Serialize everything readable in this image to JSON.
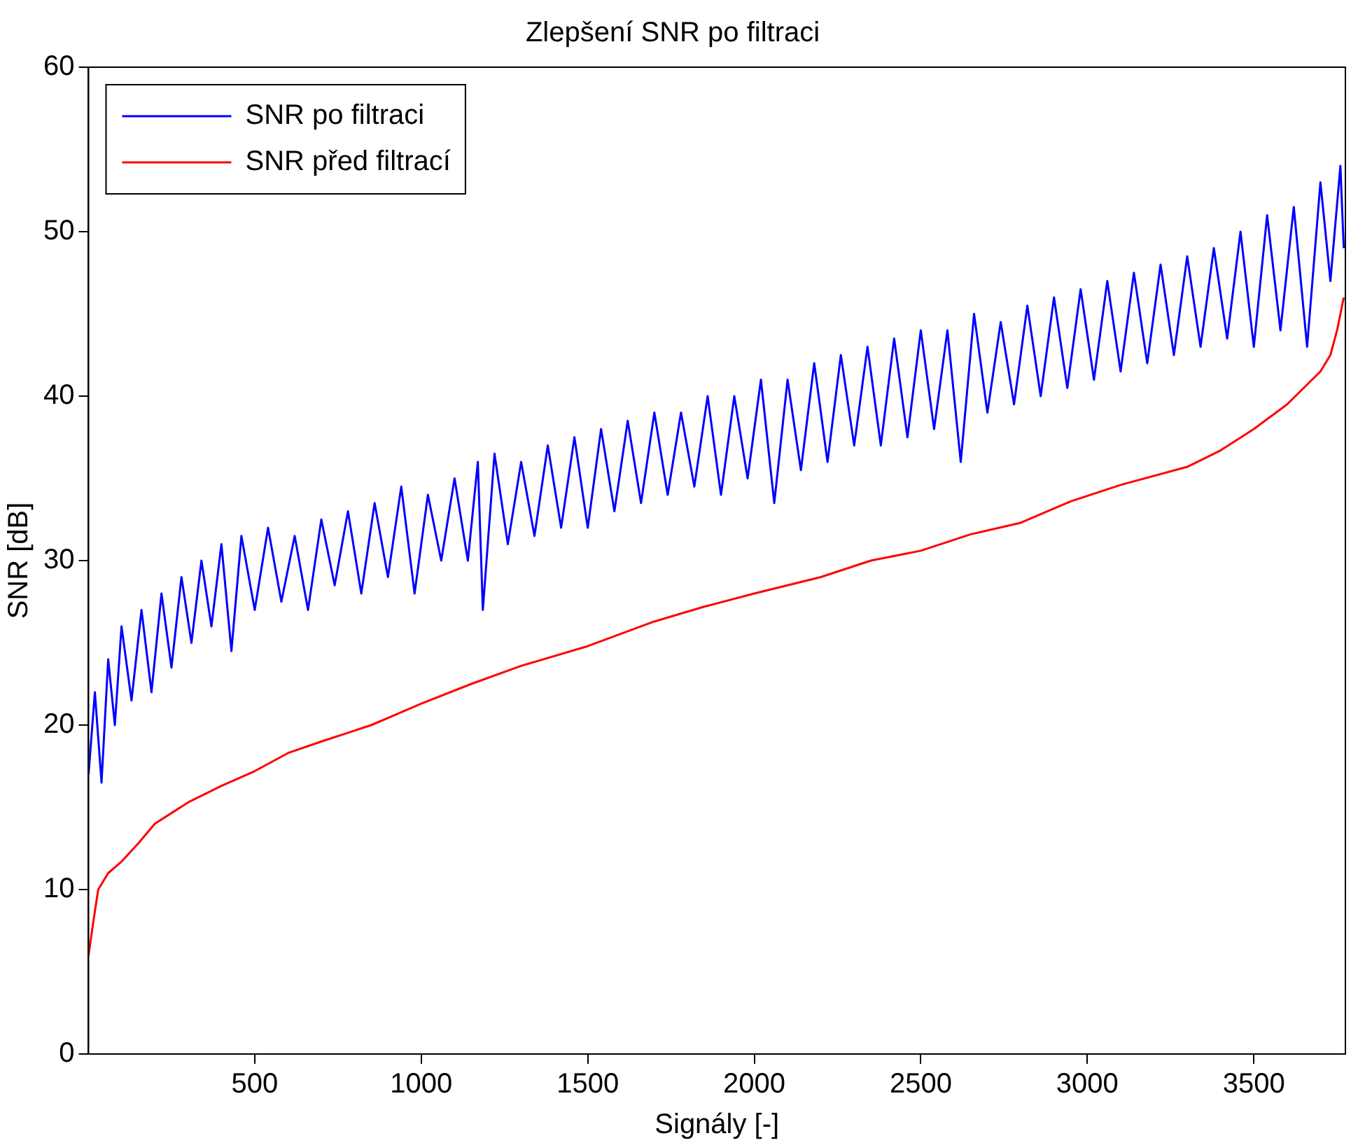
{
  "chart_data": {
    "type": "line",
    "title": "Zlepšení SNR po filtraci",
    "xlabel": "Signály [-]",
    "ylabel": "SNR [dB]",
    "xlim": [
      1,
      3775
    ],
    "xticks": [
      500,
      1000,
      1500,
      2000,
      2500,
      3000,
      3500
    ],
    "ylim": [
      0,
      60
    ],
    "yticks": [
      0,
      10,
      20,
      30,
      40,
      50,
      60
    ],
    "grid": false,
    "legend": "top left",
    "marker": "none",
    "line_style": "solid",
    "series": [
      {
        "name": "SNR po filtraci",
        "color": "#0000ff",
        "x": [
          1,
          20,
          40,
          60,
          80,
          100,
          130,
          160,
          190,
          220,
          250,
          280,
          310,
          340,
          370,
          400,
          430,
          460,
          500,
          540,
          580,
          620,
          660,
          700,
          740,
          780,
          820,
          860,
          900,
          940,
          980,
          1020,
          1060,
          1100,
          1140,
          1170,
          1185,
          1220,
          1260,
          1300,
          1340,
          1380,
          1420,
          1460,
          1500,
          1540,
          1580,
          1620,
          1660,
          1700,
          1740,
          1780,
          1820,
          1860,
          1900,
          1940,
          1980,
          2020,
          2060,
          2100,
          2140,
          2180,
          2220,
          2260,
          2300,
          2340,
          2380,
          2420,
          2460,
          2500,
          2540,
          2580,
          2620,
          2660,
          2700,
          2740,
          2780,
          2820,
          2860,
          2900,
          2940,
          2980,
          3020,
          3060,
          3100,
          3140,
          3180,
          3220,
          3260,
          3300,
          3340,
          3380,
          3420,
          3460,
          3500,
          3540,
          3580,
          3620,
          3660,
          3700,
          3730,
          3760,
          3770
        ],
        "values": [
          17,
          22,
          16.5,
          24,
          20,
          26,
          21.5,
          27,
          22,
          28,
          23.5,
          29,
          25,
          30,
          26,
          31,
          24.5,
          31.5,
          27,
          32,
          27.5,
          31.5,
          27,
          32.5,
          28.5,
          33,
          28,
          33.5,
          29,
          34.5,
          28,
          34,
          30,
          35,
          30,
          36,
          27,
          36.5,
          31,
          36,
          31.5,
          37,
          32,
          37.5,
          32,
          38,
          33,
          38.5,
          33.5,
          39,
          34,
          39,
          34.5,
          40,
          34,
          40,
          35,
          41,
          33.5,
          41,
          35.5,
          42,
          36,
          42.5,
          37,
          43,
          37,
          43.5,
          37.5,
          44,
          38,
          44,
          36,
          45,
          39,
          44.5,
          39.5,
          45.5,
          40,
          46,
          40.5,
          46.5,
          41,
          47,
          41.5,
          47.5,
          42,
          48,
          42.5,
          48.5,
          43,
          49,
          43.5,
          50,
          43,
          51,
          44,
          51.5,
          43,
          53,
          47,
          54,
          49
        ]
      },
      {
        "name": "SNR před filtrací",
        "color": "#ff0000",
        "x": [
          1,
          15,
          30,
          60,
          100,
          150,
          200,
          300,
          400,
          500,
          600,
          700,
          850,
          1000,
          1150,
          1300,
          1500,
          1700,
          1850,
          2000,
          2200,
          2350,
          2500,
          2650,
          2800,
          2950,
          3100,
          3300,
          3400,
          3500,
          3600,
          3650,
          3700,
          3730,
          3750,
          3770
        ],
        "values": [
          6,
          8,
          10,
          11,
          11.7,
          12.8,
          14,
          15.3,
          16.3,
          17.2,
          18.3,
          19,
          20,
          21.3,
          22.5,
          23.6,
          24.8,
          26.3,
          27.2,
          28,
          29,
          30,
          30.6,
          31.6,
          32.3,
          33.6,
          34.6,
          35.7,
          36.7,
          38,
          39.5,
          40.5,
          41.5,
          42.5,
          44,
          46
        ]
      }
    ]
  }
}
